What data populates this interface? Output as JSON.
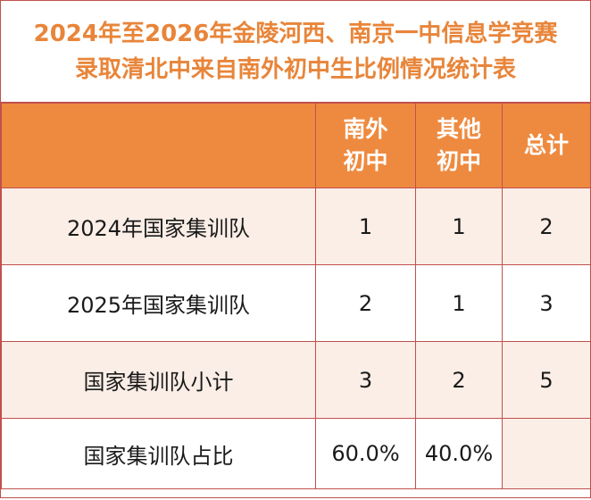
{
  "title": {
    "line1": "2024年至2026年金陵河西、南京一中信息学竞赛",
    "line2": "录取清北中来自南外初中生比例情况统计表"
  },
  "header": {
    "col0": "",
    "col1": [
      "南外",
      "初中"
    ],
    "col2": [
      "其他",
      "初中"
    ],
    "col3": "总计"
  },
  "rows": [
    {
      "label": "2024年国家集训队",
      "nanwai": "1",
      "other": "1",
      "total": "2"
    },
    {
      "label": "2025年国家集训队",
      "nanwai": "2",
      "other": "1",
      "total": "3"
    },
    {
      "label": "国家集训队小计",
      "nanwai": "3",
      "other": "2",
      "total": "5"
    },
    {
      "label": "国家集训队占比",
      "nanwai": "60.0%",
      "other": "40.0%",
      "total": ""
    }
  ],
  "colors": {
    "header_bg": "#ee8a3f",
    "title_text": "#e8853a",
    "border": "#c0504d",
    "band_bg": "#fbeee6"
  }
}
